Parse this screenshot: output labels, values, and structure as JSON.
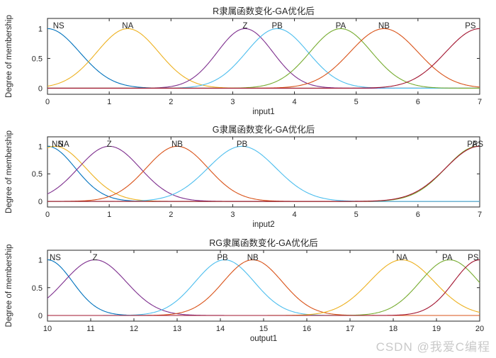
{
  "watermark": {
    "text": "CSDN @我爱C编程",
    "color": "#c9c9c9"
  },
  "figure": {
    "background": "#ffffff",
    "axis_color": "#262626",
    "text_color": "#262626",
    "palette": {
      "blue": "#0072BD",
      "orange": "#D95319",
      "yellow": "#EDB120",
      "purple": "#7E2F8E",
      "green": "#77AC30",
      "cyan": "#4DBEEE",
      "darkred": "#A2142F"
    }
  },
  "chart_data": [
    {
      "type": "line",
      "subtype": "gaussian-membership-functions",
      "title": "R隶属函数变化-GA优化后",
      "xlabel": "input1",
      "ylabel": "Degree of membership",
      "xlim": [
        0,
        7
      ],
      "ylim": [
        0,
        1
      ],
      "xticks": [
        0,
        1,
        2,
        3,
        4,
        5,
        6,
        7
      ],
      "yticks": [
        0,
        0.5,
        1
      ],
      "ytick_labels": [
        "0",
        "0.5",
        "1"
      ],
      "grid": false,
      "series": [
        {
          "name": "NS",
          "center": 0,
          "sigma": 0.52,
          "color": "#0072BD",
          "label_x": 0.18
        },
        {
          "name": "NA",
          "center": 1.3,
          "sigma": 0.5,
          "color": "#EDB120",
          "label_x": 1.3
        },
        {
          "name": "Z",
          "center": 3.2,
          "sigma": 0.45,
          "color": "#7E2F8E",
          "label_x": 3.2
        },
        {
          "name": "PB",
          "center": 3.72,
          "sigma": 0.5,
          "color": "#4DBEEE",
          "label_x": 3.72
        },
        {
          "name": "PA",
          "center": 4.75,
          "sigma": 0.5,
          "color": "#77AC30",
          "label_x": 4.75
        },
        {
          "name": "NB",
          "center": 5.45,
          "sigma": 0.55,
          "color": "#D95319",
          "label_x": 5.45
        },
        {
          "name": "PS",
          "center": 7,
          "sigma": 0.55,
          "color": "#A2142F",
          "label_x": 6.85
        }
      ]
    },
    {
      "type": "line",
      "subtype": "gaussian-membership-functions",
      "title": "G隶属函数变化-GA优化后",
      "xlabel": "input2",
      "ylabel": "Degree of membership",
      "xlim": [
        0,
        7
      ],
      "ylim": [
        0,
        1
      ],
      "xticks": [
        0,
        1,
        2,
        3,
        4,
        5,
        6,
        7
      ],
      "yticks": [
        0,
        0.5,
        1
      ],
      "ytick_labels": [
        "0",
        "0.5",
        "1"
      ],
      "grid": false,
      "series": [
        {
          "name": "NS",
          "center": 0,
          "sigma": 0.45,
          "color": "#0072BD",
          "label_x": 0.16
        },
        {
          "name": "NA",
          "center": 0.12,
          "sigma": 0.5,
          "color": "#EDB120",
          "label_x": 0.26
        },
        {
          "name": "Z",
          "center": 1.0,
          "sigma": 0.5,
          "color": "#7E2F8E",
          "label_x": 1.0
        },
        {
          "name": "NB",
          "center": 2.1,
          "sigma": 0.5,
          "color": "#D95319",
          "label_x": 2.1
        },
        {
          "name": "PB",
          "center": 3.15,
          "sigma": 0.55,
          "color": "#4DBEEE",
          "label_x": 3.15
        },
        {
          "name": "PA",
          "center": 6.97,
          "sigma": 0.52,
          "color": "#77AC30",
          "label_x": 6.88
        },
        {
          "name": "PS",
          "center": 7.0,
          "sigma": 0.55,
          "color": "#A2142F",
          "label_x": 6.97
        }
      ]
    },
    {
      "type": "line",
      "subtype": "gaussian-membership-functions",
      "title": "RG隶属函数变化-GA优化后",
      "xlabel": "output1",
      "ylabel": "Degree of membership",
      "xlim": [
        10,
        20
      ],
      "ylim": [
        0,
        1
      ],
      "xticks": [
        10,
        11,
        12,
        13,
        14,
        15,
        16,
        17,
        18,
        19,
        20
      ],
      "yticks": [
        0,
        0.5,
        1
      ],
      "ytick_labels": [
        "0",
        "0.5",
        "1"
      ],
      "grid": false,
      "series": [
        {
          "name": "NS",
          "center": 10,
          "sigma": 0.58,
          "color": "#0072BD",
          "label_x": 10.18
        },
        {
          "name": "Z",
          "center": 11.1,
          "sigma": 0.72,
          "color": "#7E2F8E",
          "label_x": 11.1
        },
        {
          "name": "PB",
          "center": 14.1,
          "sigma": 0.68,
          "color": "#4DBEEE",
          "label_x": 14.05
        },
        {
          "name": "NB",
          "center": 14.75,
          "sigma": 0.68,
          "color": "#D95319",
          "label_x": 14.75
        },
        {
          "name": "NA",
          "center": 18.2,
          "sigma": 0.75,
          "color": "#EDB120",
          "label_x": 18.2
        },
        {
          "name": "PA",
          "center": 19.3,
          "sigma": 0.68,
          "color": "#77AC30",
          "label_x": 19.25
        },
        {
          "name": "PS",
          "center": 20,
          "sigma": 0.6,
          "color": "#A2142F",
          "label_x": 19.85
        }
      ]
    }
  ]
}
